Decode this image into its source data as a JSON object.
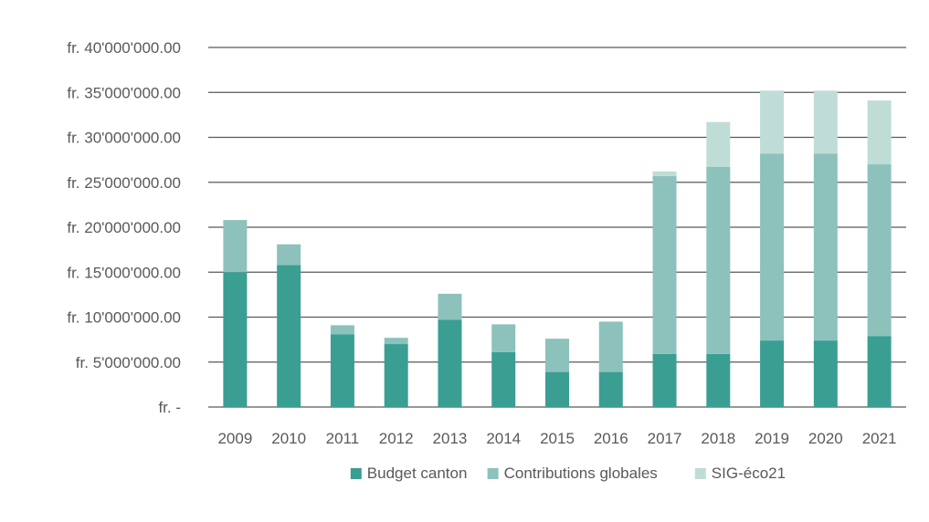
{
  "chart_data": {
    "type": "bar",
    "stacked": true,
    "categories": [
      "2009",
      "2010",
      "2011",
      "2012",
      "2013",
      "2014",
      "2015",
      "2016",
      "2017",
      "2018",
      "2019",
      "2020",
      "2021"
    ],
    "series": [
      {
        "name": "Budget canton",
        "color": "#3a9e93",
        "values": [
          15000000,
          15800000,
          8100000,
          7000000,
          9700000,
          6100000,
          3900000,
          3900000,
          5900000,
          5900000,
          7400000,
          7400000,
          7900000
        ]
      },
      {
        "name": "Contributions globales",
        "color": "#8cc2bb",
        "values": [
          5800000,
          2300000,
          1000000,
          700000,
          2900000,
          3100000,
          3700000,
          5600000,
          19800000,
          20800000,
          20800000,
          20800000,
          19100000
        ]
      },
      {
        "name": "SIG-éco21",
        "color": "#c0dcd7",
        "values": [
          0,
          0,
          0,
          0,
          0,
          0,
          0,
          0,
          500000,
          5000000,
          7000000,
          7000000,
          7100000
        ]
      }
    ],
    "ylim": [
      0,
      40000000
    ],
    "y_ticks": [
      0,
      5000000,
      10000000,
      15000000,
      20000000,
      25000000,
      30000000,
      35000000,
      40000000
    ],
    "y_tick_labels": [
      "fr. -",
      "fr. 5'000'000.00",
      "fr. 10'000'000.00",
      "fr. 15'000'000.00",
      "fr. 20'000'000.00",
      "fr. 25'000'000.00",
      "fr. 30'000'000.00",
      "fr. 35'000'000.00",
      "fr. 40'000'000.00"
    ],
    "grid": true,
    "gridline_color": "#595959",
    "legend_position": "bottom",
    "title": "",
    "xlabel": "",
    "ylabel": ""
  }
}
